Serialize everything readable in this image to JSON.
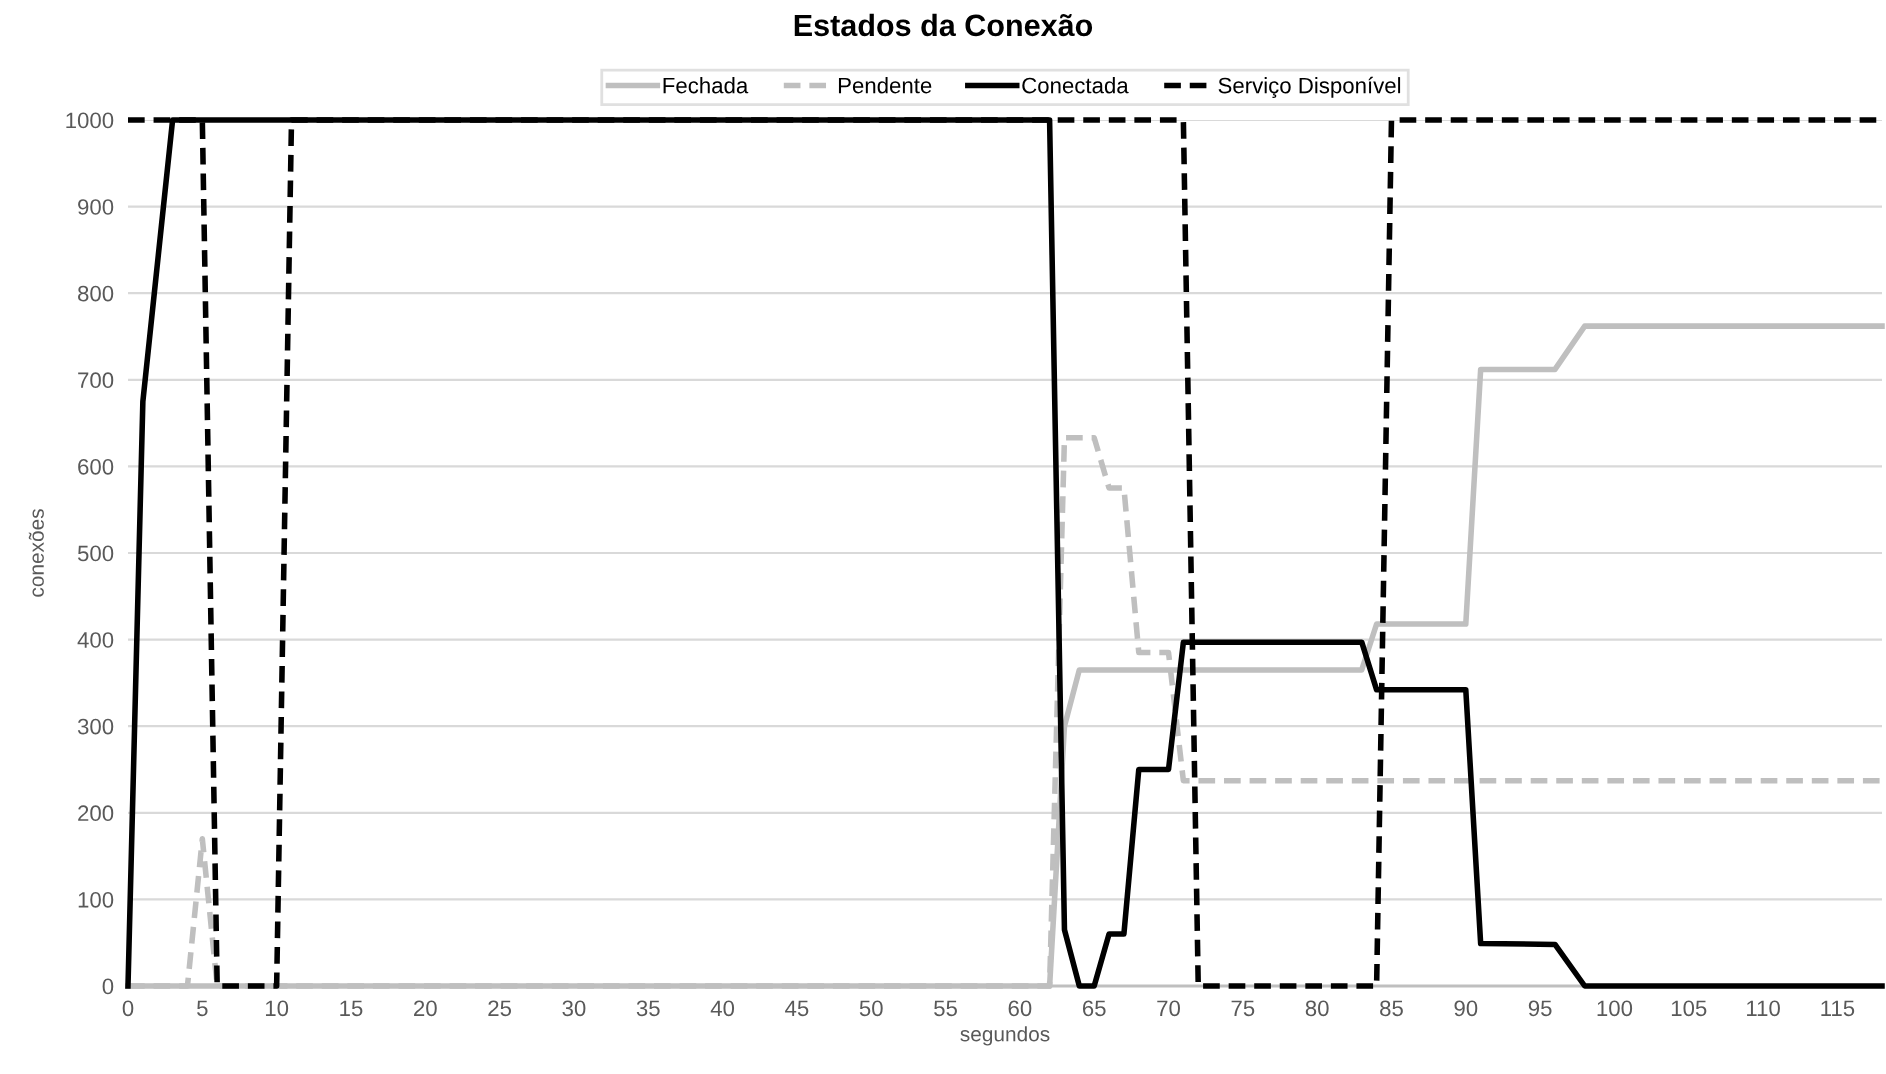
{
  "chart_data": {
    "type": "line",
    "title": "Estados da Conexão",
    "xlabel": "segundos",
    "ylabel": "conexões",
    "xlim": [
      0,
      118
    ],
    "xticks": [
      0,
      5,
      10,
      15,
      20,
      25,
      30,
      35,
      40,
      45,
      50,
      55,
      60,
      65,
      70,
      75,
      80,
      85,
      90,
      95,
      100,
      105,
      110,
      115
    ],
    "ylim": [
      0,
      1000
    ],
    "yticks": [
      0,
      100,
      200,
      300,
      400,
      500,
      600,
      700,
      800,
      900,
      1000
    ],
    "grid": "y",
    "legend": "top",
    "series": [
      {
        "name": "Fechada",
        "color": "#bfbfbf",
        "line_style": "solid",
        "x": [
          0,
          62,
          63,
          64,
          83,
          84,
          90,
          91,
          96,
          98,
          118
        ],
        "values": [
          0,
          0,
          300,
          365,
          365,
          418,
          418,
          712,
          712,
          762,
          762
        ]
      },
      {
        "name": "Pendente",
        "color": "#bfbfbf",
        "line_style": "dashed",
        "x": [
          0,
          4,
          5,
          6,
          62,
          63,
          65,
          66,
          67,
          68,
          70,
          71,
          118
        ],
        "values": [
          0,
          0,
          170,
          0,
          0,
          633,
          633,
          575,
          575,
          385,
          385,
          237,
          237
        ]
      },
      {
        "name": "Conectada",
        "color": "#000000",
        "line_style": "solid",
        "x": [
          0,
          1,
          3,
          62,
          63,
          64,
          65,
          66,
          67,
          68,
          70,
          71,
          83,
          84,
          90,
          91,
          96,
          98,
          118
        ],
        "values": [
          0,
          675,
          1000,
          1000,
          65,
          0,
          0,
          60,
          60,
          250,
          250,
          397,
          397,
          342,
          342,
          49,
          48,
          0,
          0
        ]
      },
      {
        "name": "Serviço Disponível",
        "color": "#000000",
        "line_style": "dashed",
        "x": [
          0,
          5,
          6,
          10,
          11,
          71,
          72,
          84,
          85,
          118
        ],
        "values": [
          1000,
          1000,
          0,
          0,
          1000,
          1000,
          0,
          0,
          1000,
          1000
        ]
      }
    ]
  }
}
